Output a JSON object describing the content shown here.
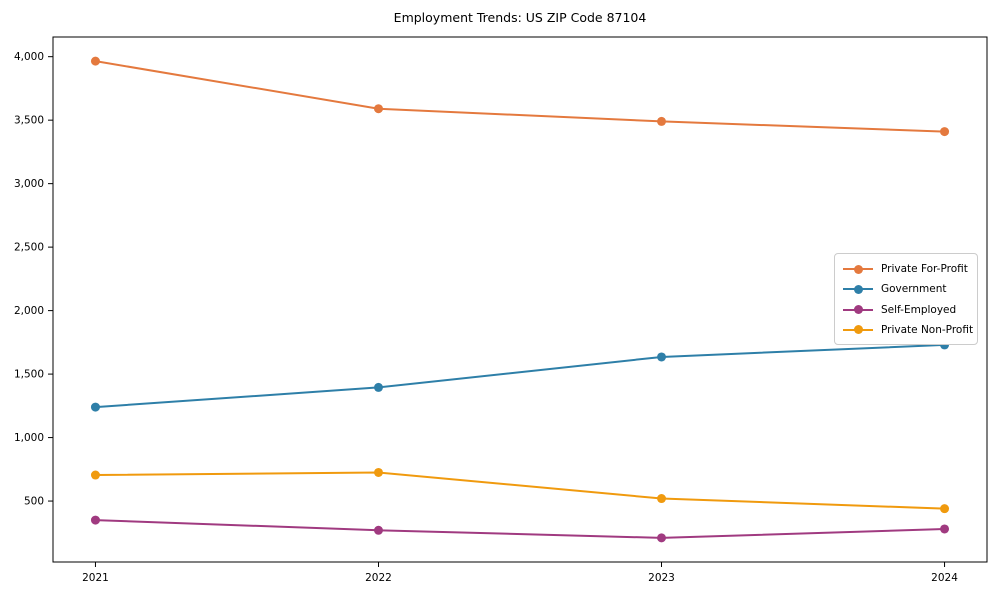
{
  "chart_data": {
    "type": "line",
    "title": "Employment Trends: US ZIP Code 87104",
    "x": [
      2021,
      2022,
      2023,
      2024
    ],
    "x_tick_labels": [
      "2021",
      "2022",
      "2023",
      "2024"
    ],
    "series": [
      {
        "name": "Private For-Profit",
        "color": "#e4793e",
        "values": [
          3965,
          3590,
          3490,
          3410
        ]
      },
      {
        "name": "Government",
        "color": "#2e7fa8",
        "values": [
          1240,
          1395,
          1635,
          1730
        ]
      },
      {
        "name": "Self-Employed",
        "color": "#a03a80",
        "values": [
          350,
          270,
          210,
          280
        ]
      },
      {
        "name": "Private Non-Profit",
        "color": "#f09a0e",
        "values": [
          705,
          725,
          520,
          440
        ]
      }
    ],
    "y_ticks": [
      500,
      1000,
      1500,
      2000,
      2500,
      3000,
      3500,
      4000
    ],
    "y_tick_labels": [
      "500",
      "1,000",
      "1,500",
      "2,000",
      "2,500",
      "3,000",
      "3,500",
      "4,000"
    ],
    "xlim": [
      2020.85,
      2024.15
    ],
    "ylim": [
      20,
      4155
    ],
    "xlabel": "",
    "ylabel": "",
    "grid": false,
    "legend_position": "center-right",
    "marker": "circle",
    "line_width": 2,
    "marker_radius": 4.5,
    "axis_color": "#000000",
    "background_color": "#ffffff"
  }
}
